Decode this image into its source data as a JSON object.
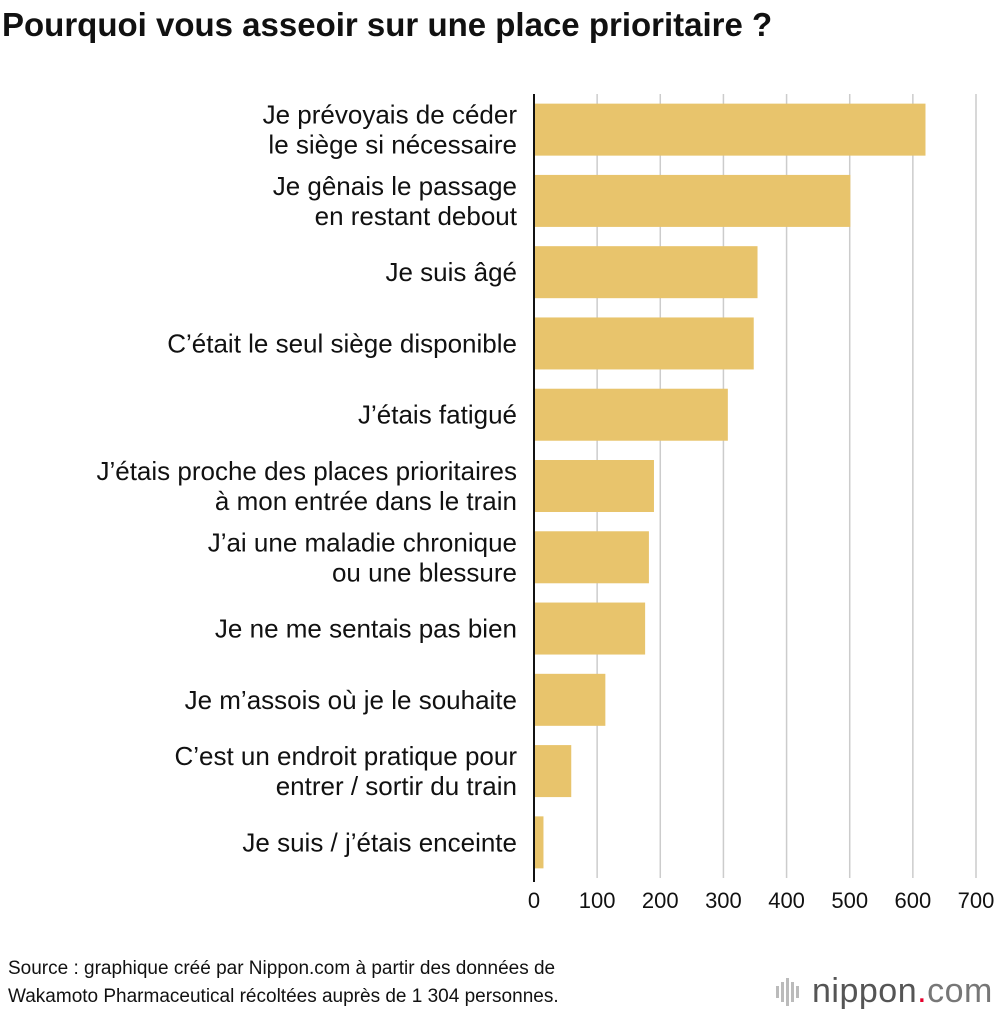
{
  "chart_data": {
    "type": "bar",
    "orientation": "horizontal",
    "title": "Pourquoi vous asseoir sur une place prioritaire ?",
    "categories": [
      [
        "Je prévoyais de céder",
        "le siège si nécessaire"
      ],
      [
        "Je gênais le passage",
        "en restant debout"
      ],
      [
        "Je suis âgé"
      ],
      [
        "C’était le seul siège disponible"
      ],
      [
        "J’étais fatigué"
      ],
      [
        "J’étais proche des places prioritaires",
        "à mon entrée dans le train"
      ],
      [
        "J’ai une maladie chronique",
        "ou une blessure"
      ],
      [
        "Je ne me sentais pas bien"
      ],
      [
        "Je m’assois où je le souhaite"
      ],
      [
        "C’est un endroit pratique pour",
        "entrer / sortir du train"
      ],
      [
        "Je suis / j’étais enceinte"
      ]
    ],
    "values": [
      620,
      501,
      354,
      348,
      307,
      190,
      182,
      176,
      113,
      59,
      15
    ],
    "xlim": [
      0,
      700
    ],
    "xticks": [
      0,
      100,
      200,
      300,
      400,
      500,
      600,
      700
    ],
    "grid": true,
    "xlabel": "",
    "ylabel": "",
    "bar_color": "#e8c46c",
    "grid_color": "#cccccc"
  },
  "source": {
    "line1": "Source : graphique créé par Nippon.com à partir des données de",
    "line2": "Wakamoto Pharmaceutical récoltées auprès de 1 304 personnes."
  },
  "logo": {
    "name": "nippon",
    "dot": ".",
    "tld": "com"
  }
}
